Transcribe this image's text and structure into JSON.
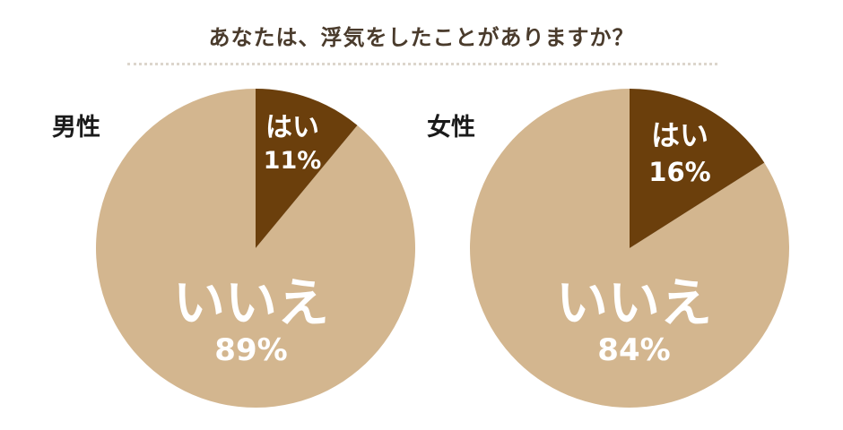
{
  "title": "あなたは、浮気をしたことがありますか？",
  "chart_data": [
    {
      "type": "pie",
      "group": "男性",
      "categories": [
        "はい",
        "いいえ"
      ],
      "values": [
        11,
        89
      ],
      "labels": [
        "11%",
        "89%"
      ],
      "colors": [
        "#6b3f0c",
        "#d3b68f"
      ]
    },
    {
      "type": "pie",
      "group": "女性",
      "categories": [
        "はい",
        "いいえ"
      ],
      "values": [
        16,
        84
      ],
      "labels": [
        "16%",
        "84%"
      ],
      "colors": [
        "#6b3f0c",
        "#d3b68f"
      ]
    }
  ]
}
